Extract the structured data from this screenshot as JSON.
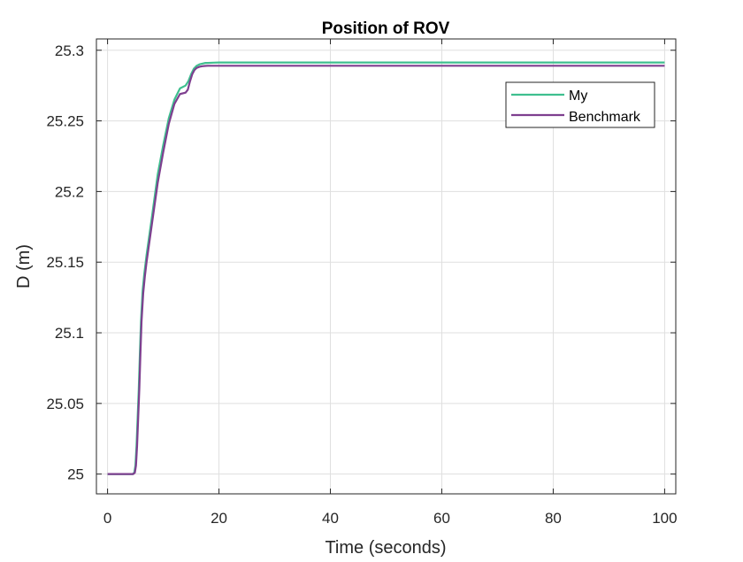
{
  "chart_data": {
    "type": "line",
    "title": "Position of ROV",
    "xlabel": "Time (seconds)",
    "ylabel": "D (m)",
    "xlim": [
      -2,
      102
    ],
    "ylim": [
      24.986,
      25.308
    ],
    "xticks": [
      0,
      20,
      40,
      60,
      80,
      100
    ],
    "xtick_labels": [
      "0",
      "20",
      "40",
      "60",
      "80",
      "100"
    ],
    "yticks": [
      25,
      25.05,
      25.1,
      25.15,
      25.2,
      25.25,
      25.3
    ],
    "ytick_labels": [
      "25",
      "25.05",
      "25.1",
      "25.15",
      "25.2",
      "25.25",
      "25.3"
    ],
    "grid": true,
    "legend_position": "top-right",
    "series": [
      {
        "name": "My",
        "color": "#3fbf8f",
        "x": [
          0,
          4.5,
          4.8,
          5.0,
          5.2,
          5.4,
          5.6,
          5.8,
          6.0,
          6.3,
          6.6,
          7.0,
          8.0,
          9.0,
          10.0,
          11.0,
          12.0,
          13.0,
          14.0,
          14.5,
          15.0,
          15.5,
          16.0,
          16.5,
          17.0,
          17.5,
          18.0,
          19.0,
          20.0,
          25.0,
          40.0,
          60.0,
          80.0,
          100.0
        ],
        "y": [
          25.0,
          25.0,
          25.001,
          25.006,
          25.02,
          25.04,
          25.06,
          25.085,
          25.108,
          25.13,
          25.142,
          25.155,
          25.183,
          25.212,
          25.233,
          25.252,
          25.265,
          25.273,
          25.275,
          25.278,
          25.283,
          25.287,
          25.289,
          25.29,
          25.2905,
          25.291,
          25.291,
          25.2912,
          25.2913,
          25.2913,
          25.2913,
          25.2913,
          25.2913,
          25.2913
        ]
      },
      {
        "name": "Benchmark",
        "color": "#7e3f8f",
        "x": [
          0,
          4.6,
          4.9,
          5.1,
          5.3,
          5.5,
          5.7,
          5.9,
          6.1,
          6.4,
          6.7,
          7.0,
          8.0,
          9.0,
          10.0,
          11.0,
          12.0,
          13.0,
          14.0,
          14.4,
          14.8,
          15.2,
          15.6,
          16.0,
          16.5,
          17.0,
          17.5,
          18.0,
          19.0,
          20.0,
          25.0,
          40.0,
          60.0,
          80.0,
          100.0
        ],
        "y": [
          25.0,
          25.0,
          25.001,
          25.006,
          25.02,
          25.04,
          25.06,
          25.085,
          25.108,
          25.128,
          25.14,
          25.15,
          25.178,
          25.206,
          25.228,
          25.248,
          25.262,
          25.269,
          25.27,
          25.272,
          25.278,
          25.283,
          25.286,
          25.2875,
          25.2883,
          25.2887,
          25.2889,
          25.289,
          25.289,
          25.289,
          25.289,
          25.289,
          25.289,
          25.289,
          25.289
        ]
      }
    ]
  }
}
